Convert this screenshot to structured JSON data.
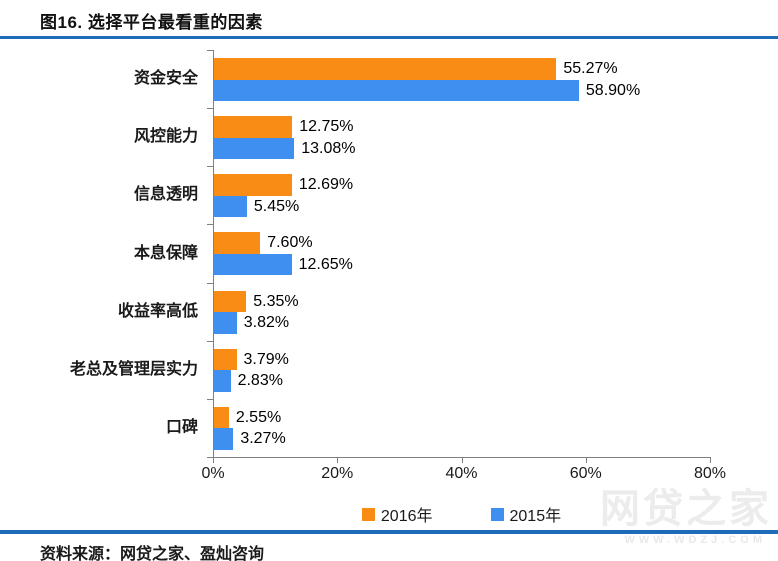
{
  "title": "图16. 选择平台最看重的因素",
  "source": "资料来源：网贷之家、盈灿咨询",
  "watermark": {
    "text": "网贷之家",
    "subtext": "WWW.WDZJ.COM"
  },
  "colors": {
    "rule_blue": "#1e6cb8",
    "axis_gray": "#808080",
    "series_2016_orange": "#f98c14",
    "series_2015_blue": "#3e8ff0"
  },
  "chart_data": {
    "type": "bar",
    "orientation": "horizontal",
    "title": "图16. 选择平台最看重的因素",
    "categories": [
      "资金安全",
      "风控能力",
      "信息透明",
      "本息保障",
      "收益率高低",
      "老总及管理层实力",
      "口碑"
    ],
    "series": [
      {
        "name": "2016年",
        "color": "#f98c14",
        "values": [
          55.27,
          12.75,
          12.69,
          7.6,
          5.35,
          3.79,
          2.55
        ]
      },
      {
        "name": "2015年",
        "color": "#3e8ff0",
        "values": [
          58.9,
          13.08,
          5.45,
          12.65,
          3.82,
          2.83,
          3.27
        ]
      }
    ],
    "value_labels": {
      "2016年": [
        "55.27%",
        "12.75%",
        "12.69%",
        "7.60%",
        "5.35%",
        "3.79%",
        "2.55%"
      ],
      "2015年": [
        "58.90%",
        "13.08%",
        "5.45%",
        "12.65%",
        "3.82%",
        "2.83%",
        "3.27%"
      ]
    },
    "xlim": [
      0,
      80
    ],
    "x_ticks": [
      "0%",
      "20%",
      "40%",
      "60%",
      "80%"
    ],
    "x_tick_values": [
      0,
      20,
      40,
      60,
      80
    ],
    "grid": false,
    "legend_position": "bottom"
  }
}
